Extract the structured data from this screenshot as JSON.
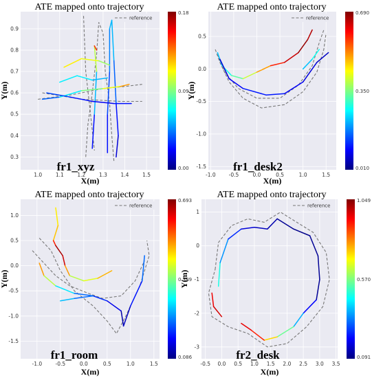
{
  "chart_data": [
    {
      "type": "line",
      "title": "ATE mapped onto trajectory",
      "dataset": "fr1_xyz",
      "xlabel": "X(m)",
      "ylabel": "Y(m)",
      "xlim": [
        0.92,
        1.56
      ],
      "ylim": [
        0.24,
        0.98
      ],
      "xticks": [
        "1.0",
        "1.1",
        "1.2",
        "1.3",
        "1.4",
        "1.5"
      ],
      "yticks": [
        "0.3",
        "0.4",
        "0.5",
        "0.6",
        "0.7",
        "0.8",
        "0.9"
      ],
      "legend": "reference",
      "legend_position": "top-right",
      "colorbar": {
        "min": 0.0,
        "mid": 0.09,
        "max": 0.18,
        "labels": [
          "0.18",
          "0.09",
          "0.00"
        ]
      },
      "grid": true,
      "reference": [
        [
          1.22,
          0.3
        ],
        [
          1.23,
          0.45
        ],
        [
          1.25,
          0.6
        ],
        [
          1.27,
          0.78
        ],
        [
          1.28,
          0.93
        ],
        [
          1.3,
          0.88
        ],
        [
          1.31,
          0.7
        ],
        [
          1.33,
          0.55
        ],
        [
          1.34,
          0.4
        ],
        [
          1.35,
          0.28
        ],
        null,
        [
          1.0,
          0.57
        ],
        [
          1.15,
          0.59
        ],
        [
          1.3,
          0.62
        ],
        [
          1.4,
          0.63
        ],
        [
          1.48,
          0.64
        ],
        null,
        [
          1.02,
          0.6
        ],
        [
          1.2,
          0.57
        ],
        [
          1.38,
          0.56
        ],
        [
          1.48,
          0.56
        ],
        null,
        [
          1.21,
          0.96
        ],
        [
          1.22,
          0.7
        ],
        [
          1.24,
          0.52
        ],
        [
          1.26,
          0.33
        ]
      ],
      "estimate": [
        [
          1.32,
          0.32,
          0.02
        ],
        [
          1.32,
          0.5,
          0.03
        ],
        [
          1.33,
          0.7,
          0.04
        ],
        [
          1.33,
          0.9,
          0.05
        ],
        [
          1.34,
          0.94,
          0.06
        ],
        [
          1.35,
          0.75,
          0.05
        ],
        [
          1.36,
          0.55,
          0.03
        ],
        [
          1.37,
          0.4,
          0.02
        ],
        [
          1.36,
          0.3,
          0.01
        ],
        null,
        [
          1.25,
          0.34,
          0.02
        ],
        [
          1.26,
          0.5,
          0.03
        ],
        [
          1.27,
          0.7,
          0.08
        ],
        [
          1.26,
          0.82,
          0.12
        ],
        [
          1.27,
          0.8,
          0.18
        ],
        null,
        [
          1.02,
          0.57,
          0.03
        ],
        [
          1.1,
          0.58,
          0.05
        ],
        [
          1.2,
          0.61,
          0.08
        ],
        [
          1.3,
          0.62,
          0.1
        ],
        [
          1.38,
          0.63,
          0.12
        ],
        [
          1.42,
          0.64,
          0.14
        ],
        null,
        [
          1.04,
          0.6,
          0.04
        ],
        [
          1.15,
          0.58,
          0.03
        ],
        [
          1.25,
          0.56,
          0.02
        ],
        [
          1.35,
          0.55,
          0.02
        ],
        [
          1.43,
          0.55,
          0.03
        ],
        null,
        [
          1.12,
          0.72,
          0.11
        ],
        [
          1.2,
          0.76,
          0.12
        ],
        [
          1.28,
          0.75,
          0.1
        ],
        [
          1.33,
          0.73,
          0.09
        ],
        null,
        [
          1.1,
          0.65,
          0.06
        ],
        [
          1.18,
          0.68,
          0.07
        ],
        [
          1.25,
          0.66,
          0.06
        ],
        [
          1.32,
          0.67,
          0.05
        ]
      ]
    },
    {
      "type": "line",
      "title": "ATE mapped onto trajectory",
      "dataset": "fr1_desk2",
      "xlabel": "X(m)",
      "ylabel": "Y(m)",
      "xlim": [
        -1.05,
        1.72
      ],
      "ylim": [
        -1.55,
        0.88
      ],
      "xticks": [
        "-1.0",
        "-0.5",
        "0.0",
        "0.5",
        "1.0",
        "1.5"
      ],
      "yticks": [
        "0.5",
        "0.0",
        "-0.5",
        "-1.0",
        "-1.5"
      ],
      "legend": "reference",
      "legend_position": "top-right",
      "colorbar": {
        "min": 0.01,
        "mid": 0.35,
        "max": 0.69,
        "labels": [
          "0.690",
          "0.350",
          "0.010"
        ]
      },
      "grid": true,
      "reference": [
        [
          -0.9,
          0.3
        ],
        [
          -0.8,
          0.1
        ],
        [
          -0.6,
          -0.2
        ],
        [
          -0.3,
          -0.45
        ],
        [
          0.1,
          -0.6
        ],
        [
          0.6,
          -0.55
        ],
        [
          1.0,
          -0.35
        ],
        [
          1.3,
          -0.05
        ],
        [
          1.45,
          0.3
        ],
        [
          1.5,
          0.55
        ],
        null,
        [
          -0.85,
          0.22
        ],
        [
          -0.7,
          -0.05
        ],
        [
          -0.4,
          -0.3
        ],
        [
          0.0,
          -0.45
        ],
        [
          0.5,
          -0.45
        ],
        [
          0.9,
          -0.25
        ],
        [
          1.2,
          0.05
        ],
        [
          1.35,
          0.4
        ],
        [
          1.45,
          0.6
        ]
      ],
      "estimate": [
        [
          -0.85,
          0.25,
          0.2
        ],
        [
          -0.75,
          0.05,
          0.25
        ],
        [
          -0.55,
          -0.1,
          0.3
        ],
        [
          -0.3,
          -0.15,
          0.35
        ],
        [
          0.0,
          -0.05,
          0.45
        ],
        [
          0.3,
          0.05,
          0.55
        ],
        [
          0.6,
          0.1,
          0.62
        ],
        [
          0.9,
          0.25,
          0.66
        ],
        [
          1.1,
          0.45,
          0.69
        ],
        [
          1.2,
          0.6,
          0.62
        ],
        null,
        [
          -0.8,
          0.15,
          0.05
        ],
        [
          -0.6,
          -0.15,
          0.08
        ],
        [
          -0.3,
          -0.3,
          0.1
        ],
        [
          0.2,
          -0.4,
          0.12
        ],
        [
          0.6,
          -0.38,
          0.1
        ],
        [
          1.0,
          -0.2,
          0.08
        ],
        [
          1.3,
          0.1,
          0.06
        ],
        [
          1.55,
          0.25,
          0.05
        ],
        null,
        [
          1.0,
          0.0,
          0.2
        ],
        [
          1.2,
          0.15,
          0.25
        ],
        [
          1.35,
          0.3,
          0.3
        ]
      ]
    },
    {
      "type": "line",
      "title": "ATE mapped onto trajectory",
      "dataset": "fr1_room",
      "xlabel": "X(m)",
      "ylabel": "Y(m)",
      "xlim": [
        -1.35,
        1.62
      ],
      "ylim": [
        -1.85,
        1.32
      ],
      "xticks": [
        "-1.0",
        "-0.5",
        "0.0",
        "0.5",
        "1.0",
        "1.5"
      ],
      "yticks": [
        "1.0",
        "0.5",
        "0.0",
        "-0.5",
        "-1.0",
        "-1.5"
      ],
      "legend": "reference",
      "legend_position": "top-right",
      "colorbar": {
        "min": 0.086,
        "mid": 0.389,
        "max": 0.693,
        "labels": [
          "0.693",
          "0.389",
          "0.086"
        ]
      },
      "grid": true,
      "reference": [
        [
          -0.95,
          0.55
        ],
        [
          -0.7,
          0.3
        ],
        [
          -0.5,
          -0.1
        ],
        [
          -0.2,
          -0.5
        ],
        [
          0.2,
          -0.8
        ],
        [
          0.5,
          -1.1
        ],
        [
          0.7,
          -1.35
        ],
        [
          0.9,
          -1.0
        ],
        [
          1.2,
          -0.4
        ],
        [
          1.4,
          0.2
        ],
        [
          1.35,
          0.5
        ],
        null,
        [
          -1.1,
          0.3
        ],
        [
          -0.9,
          0.1
        ],
        [
          -0.6,
          -0.2
        ],
        [
          -0.3,
          -0.4
        ],
        [
          0.1,
          -0.55
        ],
        [
          0.4,
          -0.65
        ],
        [
          0.8,
          -0.6
        ],
        [
          1.1,
          -0.3
        ],
        [
          1.3,
          0.1
        ]
      ],
      "estimate": [
        [
          -0.6,
          1.15,
          0.5
        ],
        [
          -0.55,
          0.8,
          0.45
        ],
        [
          -0.65,
          0.5,
          0.55
        ],
        [
          -0.6,
          0.4,
          0.65
        ],
        [
          -0.45,
          0.2,
          0.69
        ],
        [
          -0.4,
          0.0,
          0.6
        ],
        [
          -0.3,
          -0.2,
          0.45
        ],
        [
          0.0,
          -0.3,
          0.4
        ],
        [
          0.3,
          -0.25,
          0.5
        ],
        [
          0.6,
          -0.1,
          0.52
        ],
        null,
        [
          -0.95,
          0.05,
          0.55
        ],
        [
          -0.85,
          -0.2,
          0.5
        ],
        [
          -0.6,
          -0.4,
          0.35
        ],
        [
          -0.2,
          -0.55,
          0.25
        ],
        [
          0.2,
          -0.6,
          0.2
        ],
        [
          0.5,
          -0.7,
          0.18
        ],
        [
          0.8,
          -0.9,
          0.12
        ],
        [
          0.85,
          -1.2,
          0.1
        ],
        [
          1.0,
          -0.8,
          0.15
        ],
        [
          1.25,
          -0.3,
          0.2
        ],
        [
          1.3,
          0.2,
          0.25
        ],
        null,
        [
          -0.5,
          -0.7,
          0.3
        ],
        [
          -0.2,
          -0.65,
          0.25
        ],
        [
          0.2,
          -0.6,
          0.2
        ]
      ]
    },
    {
      "type": "line",
      "title": "ATE mapped onto trajectory",
      "dataset": "fr2_desk",
      "xlabel": "X(m)",
      "ylabel": "Y(m)",
      "xlim": [
        -0.62,
        3.55
      ],
      "ylim": [
        -3.35,
        1.38
      ],
      "xticks": [
        "-0.5",
        "0.0",
        "0.5",
        "1.0",
        "1.5",
        "2.0",
        "2.5",
        "3.0",
        "3.5"
      ],
      "yticks": [
        "1",
        "0",
        "-1",
        "-2",
        "-3"
      ],
      "legend": "reference",
      "legend_position": "top-right",
      "colorbar": {
        "min": 0.091,
        "mid": 0.57,
        "max": 1.049,
        "labels": [
          "1.049",
          "0.570",
          "0.091"
        ]
      },
      "grid": true,
      "reference": [
        [
          -0.2,
          -0.7
        ],
        [
          -0.1,
          0.1
        ],
        [
          0.3,
          0.6
        ],
        [
          0.8,
          0.8
        ],
        [
          1.3,
          0.7
        ],
        [
          1.8,
          1.0
        ],
        [
          2.3,
          0.7
        ],
        [
          2.8,
          0.4
        ],
        [
          3.2,
          -0.2
        ],
        [
          3.3,
          -1.0
        ],
        [
          3.1,
          -1.8
        ],
        [
          2.6,
          -2.4
        ],
        [
          2.0,
          -2.9
        ],
        [
          1.4,
          -3.0
        ],
        [
          0.8,
          -2.6
        ],
        [
          0.2,
          -2.4
        ],
        [
          -0.3,
          -2.1
        ],
        [
          -0.4,
          -1.4
        ],
        [
          -0.2,
          -0.7
        ]
      ],
      "estimate": [
        [
          -0.1,
          -1.2,
          0.55
        ],
        [
          -0.05,
          -0.5,
          0.4
        ],
        [
          0.2,
          0.2,
          0.3
        ],
        [
          0.6,
          0.5,
          0.2
        ],
        [
          1.0,
          0.55,
          0.15
        ],
        [
          1.4,
          0.5,
          0.15
        ],
        [
          1.7,
          0.8,
          0.12
        ],
        [
          2.2,
          0.5,
          0.1
        ],
        [
          2.7,
          0.3,
          0.1
        ],
        [
          2.95,
          -0.3,
          0.12
        ],
        [
          3.0,
          -1.0,
          0.1
        ],
        [
          2.9,
          -1.6,
          0.12
        ],
        [
          2.5,
          -2.0,
          0.3
        ],
        [
          2.2,
          -2.4,
          0.45
        ],
        [
          1.7,
          -2.7,
          0.65
        ],
        [
          1.3,
          -2.8,
          0.8
        ],
        [
          0.9,
          -2.5,
          1.0
        ],
        [
          0.6,
          -2.3,
          0.9
        ],
        null,
        [
          -0.3,
          -1.4,
          0.85
        ],
        [
          -0.25,
          -1.8,
          1.04
        ],
        [
          0.0,
          -2.1,
          0.9
        ]
      ]
    }
  ]
}
